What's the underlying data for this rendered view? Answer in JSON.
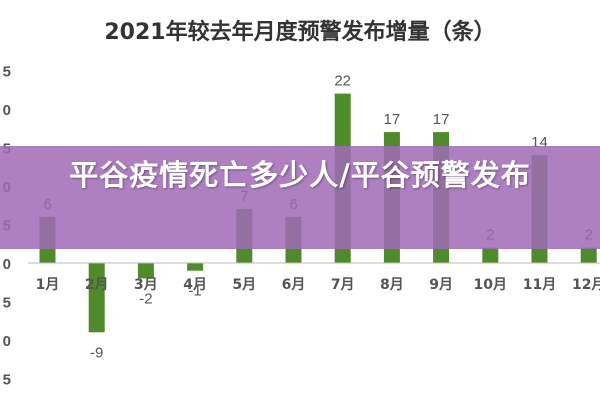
{
  "chart_data": {
    "type": "bar",
    "title": "2021年较去年月度预警发布增量（条）",
    "categories": [
      "1月",
      "2月",
      "3月",
      "4月",
      "5月",
      "6月",
      "7月",
      "8月",
      "9月",
      "10月",
      "11月",
      "12月"
    ],
    "values": [
      6,
      -9,
      -2,
      -1,
      7,
      6,
      22,
      17,
      17,
      2,
      14,
      2
    ],
    "data_labels": [
      "6",
      "-9",
      "-2",
      "-1",
      "7",
      "6",
      "22",
      "17",
      "17",
      "2",
      "14",
      "2"
    ],
    "y_tick_labels": [
      "5",
      "0",
      "5",
      "0",
      "5",
      "0",
      "5",
      "0",
      "5"
    ],
    "ylim": [
      -15,
      25
    ],
    "xlabel": "",
    "ylabel": "",
    "grid": false,
    "legend": "none",
    "bar_color": "#4f8a2b"
  },
  "banner": {
    "text": "平谷疫情死亡多少人/平谷预警发布"
  }
}
